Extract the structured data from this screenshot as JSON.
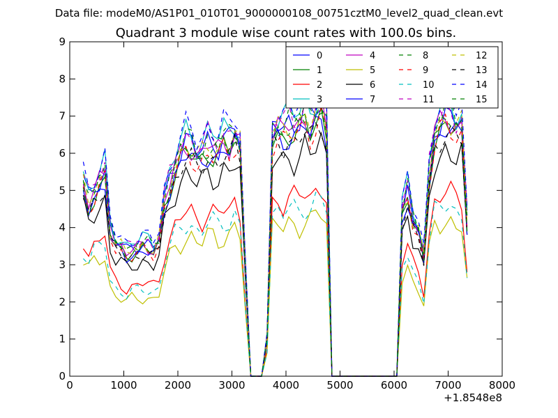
{
  "chart_data": {
    "type": "line",
    "suptitle": "Data file: modeM0/AS1P01_010T01_9000000108_00751cztM0_level2_quad_clean.evt",
    "title": "Quadrant 3 module wise count rates with 100.0s bins.",
    "xlabel": "",
    "ylabel": "",
    "x_offset_label": "+1.8548e8",
    "xlim": [
      0,
      8000
    ],
    "ylim": [
      0,
      9
    ],
    "xticks": [
      0,
      1000,
      2000,
      3000,
      4000,
      5000,
      6000,
      7000,
      8000
    ],
    "yticks": [
      0,
      1,
      2,
      3,
      4,
      5,
      6,
      7,
      8,
      9
    ],
    "grid": false,
    "legend_position": "top-right",
    "legend_columns": 4,
    "x": [
      250,
      350,
      450,
      550,
      650,
      750,
      850,
      950,
      1050,
      1150,
      1250,
      1350,
      1450,
      1550,
      1650,
      1750,
      1850,
      1950,
      2050,
      2150,
      2250,
      2350,
      2450,
      2550,
      2650,
      2750,
      2850,
      2950,
      3050,
      3150,
      3250,
      3350,
      3450,
      3550,
      3650,
      3750,
      3850,
      3950,
      4050,
      4150,
      4250,
      4350,
      4450,
      4550,
      4650,
      4750,
      4850,
      4950,
      5050,
      5150,
      5250,
      5350,
      5450,
      5550,
      5650,
      5750,
      5850,
      5950,
      6050,
      6150,
      6250,
      6350,
      6450,
      6550,
      6650,
      6750,
      6850,
      6950,
      7050,
      7150,
      7250,
      7350
    ],
    "profile": [
      1.0,
      0.9,
      0.95,
      1.0,
      1.05,
      0.75,
      0.68,
      0.67,
      0.64,
      0.65,
      0.66,
      0.68,
      0.67,
      0.65,
      0.7,
      0.9,
      1.0,
      1.08,
      1.15,
      1.2,
      1.18,
      1.13,
      1.15,
      1.2,
      1.18,
      1.17,
      1.22,
      1.2,
      1.25,
      1.2,
      0.55,
      0.0,
      0.0,
      0.0,
      0.2,
      1.25,
      1.28,
      1.27,
      1.3,
      1.28,
      1.3,
      1.35,
      1.3,
      1.35,
      1.4,
      1.3,
      0.0,
      0.0,
      0.0,
      0.0,
      0.0,
      0.0,
      0.0,
      0.0,
      0.0,
      0.0,
      0.0,
      0.0,
      0.0,
      0.85,
      0.95,
      0.8,
      0.75,
      0.62,
      1.05,
      1.25,
      1.3,
      1.35,
      1.32,
      1.28,
      1.3,
      0.8
    ],
    "series": [
      {
        "name": "0",
        "color": "#0000ff",
        "dash": false,
        "level": 5.3
      },
      {
        "name": "1",
        "color": "#008000",
        "dash": false,
        "level": 5.05
      },
      {
        "name": "2",
        "color": "#ff0000",
        "dash": false,
        "level": 3.7
      },
      {
        "name": "3",
        "color": "#00bfbf",
        "dash": false,
        "level": 5.5
      },
      {
        "name": "4",
        "color": "#bf00bf",
        "dash": false,
        "level": 5.2
      },
      {
        "name": "5",
        "color": "#bfbf00",
        "dash": false,
        "level": 3.15
      },
      {
        "name": "6",
        "color": "#000000",
        "dash": false,
        "level": 4.55
      },
      {
        "name": "7",
        "color": "#0000ff",
        "dash": false,
        "level": 5.0
      },
      {
        "name": "8",
        "color": "#008000",
        "dash": true,
        "level": 5.35
      },
      {
        "name": "9",
        "color": "#ff0000",
        "dash": true,
        "level": 5.0
      },
      {
        "name": "10",
        "color": "#00bfbf",
        "dash": true,
        "level": 3.45
      },
      {
        "name": "11",
        "color": "#bf00bf",
        "dash": true,
        "level": 5.4
      },
      {
        "name": "12",
        "color": "#bfbf00",
        "dash": true,
        "level": 5.2
      },
      {
        "name": "13",
        "color": "#000000",
        "dash": true,
        "level": 4.9
      },
      {
        "name": "14",
        "color": "#0000ff",
        "dash": true,
        "level": 5.6
      },
      {
        "name": "15",
        "color": "#008000",
        "dash": true,
        "level": 5.15
      }
    ]
  }
}
